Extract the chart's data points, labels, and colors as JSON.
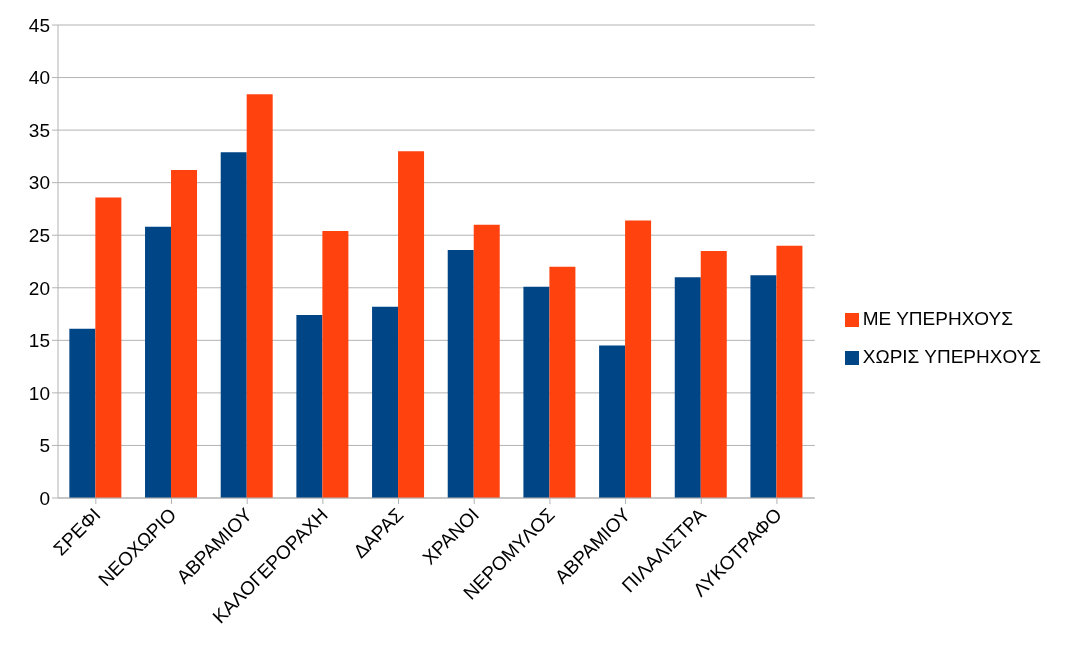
{
  "chart_data": {
    "type": "bar",
    "categories": [
      "ΣΡΕΦΙ",
      "ΝΕΟΧΩΡΙΟ",
      "ΑΒΡΑΜΙΟΥ",
      "ΚΑΛΟΓΕΡΟΡΑΧΗ",
      "ΔΑΡΑΣ",
      "ΧΡΑΝΟΙ",
      "ΝΕΡΟΜΥΛΟΣ",
      "ΑΒΡΑΜΙΟΥ",
      "ΠΙΛΑΛΙΣΤΡΑ",
      "ΛΥΚΟΤΡΑΦΟ"
    ],
    "series": [
      {
        "name": "ΧΩΡΙΣ ΥΠΕΡΗΧΟΥΣ",
        "color": "#004586",
        "values": [
          16.1,
          25.8,
          32.9,
          17.4,
          18.2,
          23.6,
          20.1,
          14.5,
          21.0,
          21.2
        ]
      },
      {
        "name": "ΜΕ ΥΠΕΡΗΧΟΥΣ",
        "color": "#ff420e",
        "values": [
          28.6,
          31.2,
          38.4,
          25.4,
          33.0,
          26.0,
          22.0,
          26.4,
          23.5,
          24.0
        ]
      }
    ],
    "ylim": [
      0,
      45
    ],
    "yticks": [
      0,
      5,
      10,
      15,
      20,
      25,
      30,
      35,
      40,
      45
    ],
    "grid": "y",
    "legend": "right"
  }
}
